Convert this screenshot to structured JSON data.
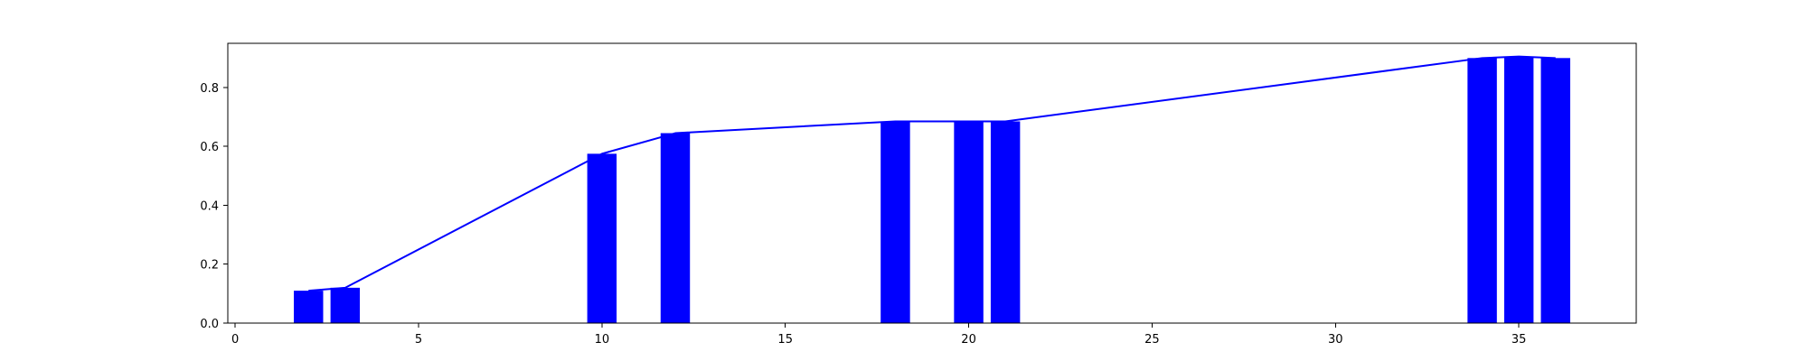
{
  "chart_data": {
    "type": "bar",
    "title": "",
    "xlabel": "",
    "ylabel": "",
    "xlim": [
      -0.2,
      38.2
    ],
    "ylim": [
      0,
      0.95
    ],
    "grid": false,
    "bar_color": "#0000ff",
    "line_color": "#0000ff",
    "x_ticks": [
      0,
      5,
      10,
      15,
      20,
      25,
      30,
      35
    ],
    "y_ticks": [
      0.0,
      0.2,
      0.4,
      0.6,
      0.8
    ],
    "x_tick_labels": [
      "0",
      "5",
      "10",
      "15",
      "20",
      "25",
      "30",
      "35"
    ],
    "y_tick_labels": [
      "0.0",
      "0.2",
      "0.4",
      "0.6",
      "0.8"
    ],
    "bar_width": 0.8,
    "bars": [
      {
        "x": 2,
        "value": 0.11
      },
      {
        "x": 3,
        "value": 0.12
      },
      {
        "x": 10,
        "value": 0.575
      },
      {
        "x": 12,
        "value": 0.645
      },
      {
        "x": 18,
        "value": 0.685
      },
      {
        "x": 20,
        "value": 0.685
      },
      {
        "x": 21,
        "value": 0.685
      },
      {
        "x": 34,
        "value": 0.9
      },
      {
        "x": 35,
        "value": 0.905
      },
      {
        "x": 36,
        "value": 0.9
      }
    ],
    "line": {
      "x": [
        2,
        3,
        10,
        12,
        18,
        20,
        21,
        34,
        35,
        36
      ],
      "y": [
        0.11,
        0.12,
        0.575,
        0.645,
        0.685,
        0.685,
        0.685,
        0.9,
        0.905,
        0.9
      ]
    }
  }
}
